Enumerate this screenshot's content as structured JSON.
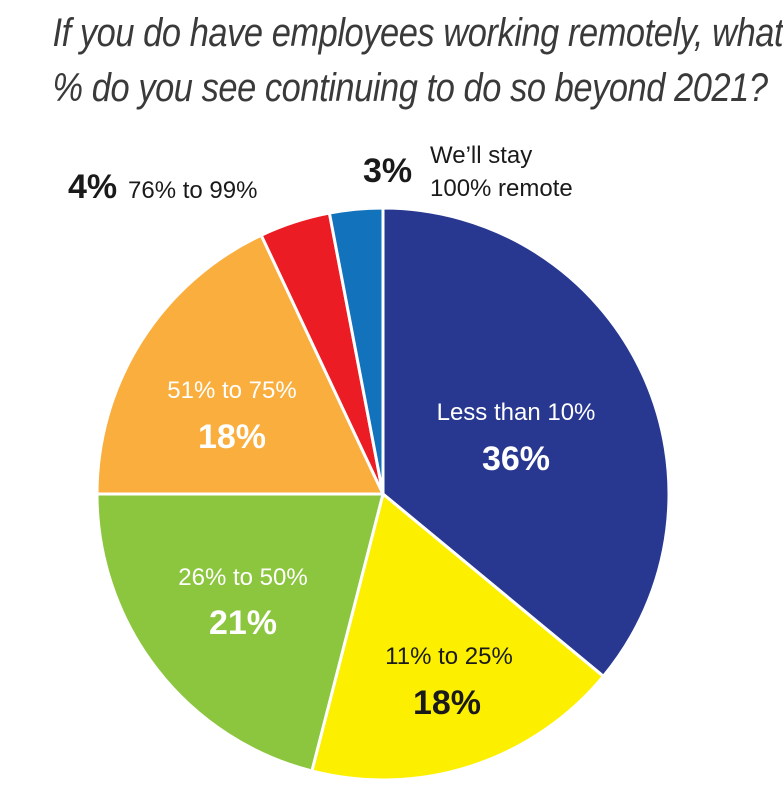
{
  "title_lines": [
    "If you do have employees working remotely, what",
    "% do you see continuing to do so beyond 2021?"
  ],
  "chart_data": {
    "type": "pie",
    "title": "If you do have employees working remotely, what % do you see continuing to do so beyond 2021?",
    "slices": [
      {
        "label": "Less than 10%",
        "value": 36,
        "value_label": "36%",
        "color": "#283890"
      },
      {
        "label": "11% to 25%",
        "value": 18,
        "value_label": "18%",
        "color": "#fcf000"
      },
      {
        "label": "26% to 50%",
        "value": 21,
        "value_label": "21%",
        "color": "#8cc63e"
      },
      {
        "label": "51% to 75%",
        "value": 18,
        "value_label": "18%",
        "color": "#f9ae3d"
      },
      {
        "label": "76% to 99%",
        "value": 4,
        "value_label": "4%",
        "color": "#ec1c24"
      },
      {
        "label": "We'll stay 100% remote",
        "label_lines": [
          "We’ll stay",
          "100% remote"
        ],
        "value": 3,
        "value_label": "3%",
        "color": "#1272bb"
      }
    ]
  }
}
